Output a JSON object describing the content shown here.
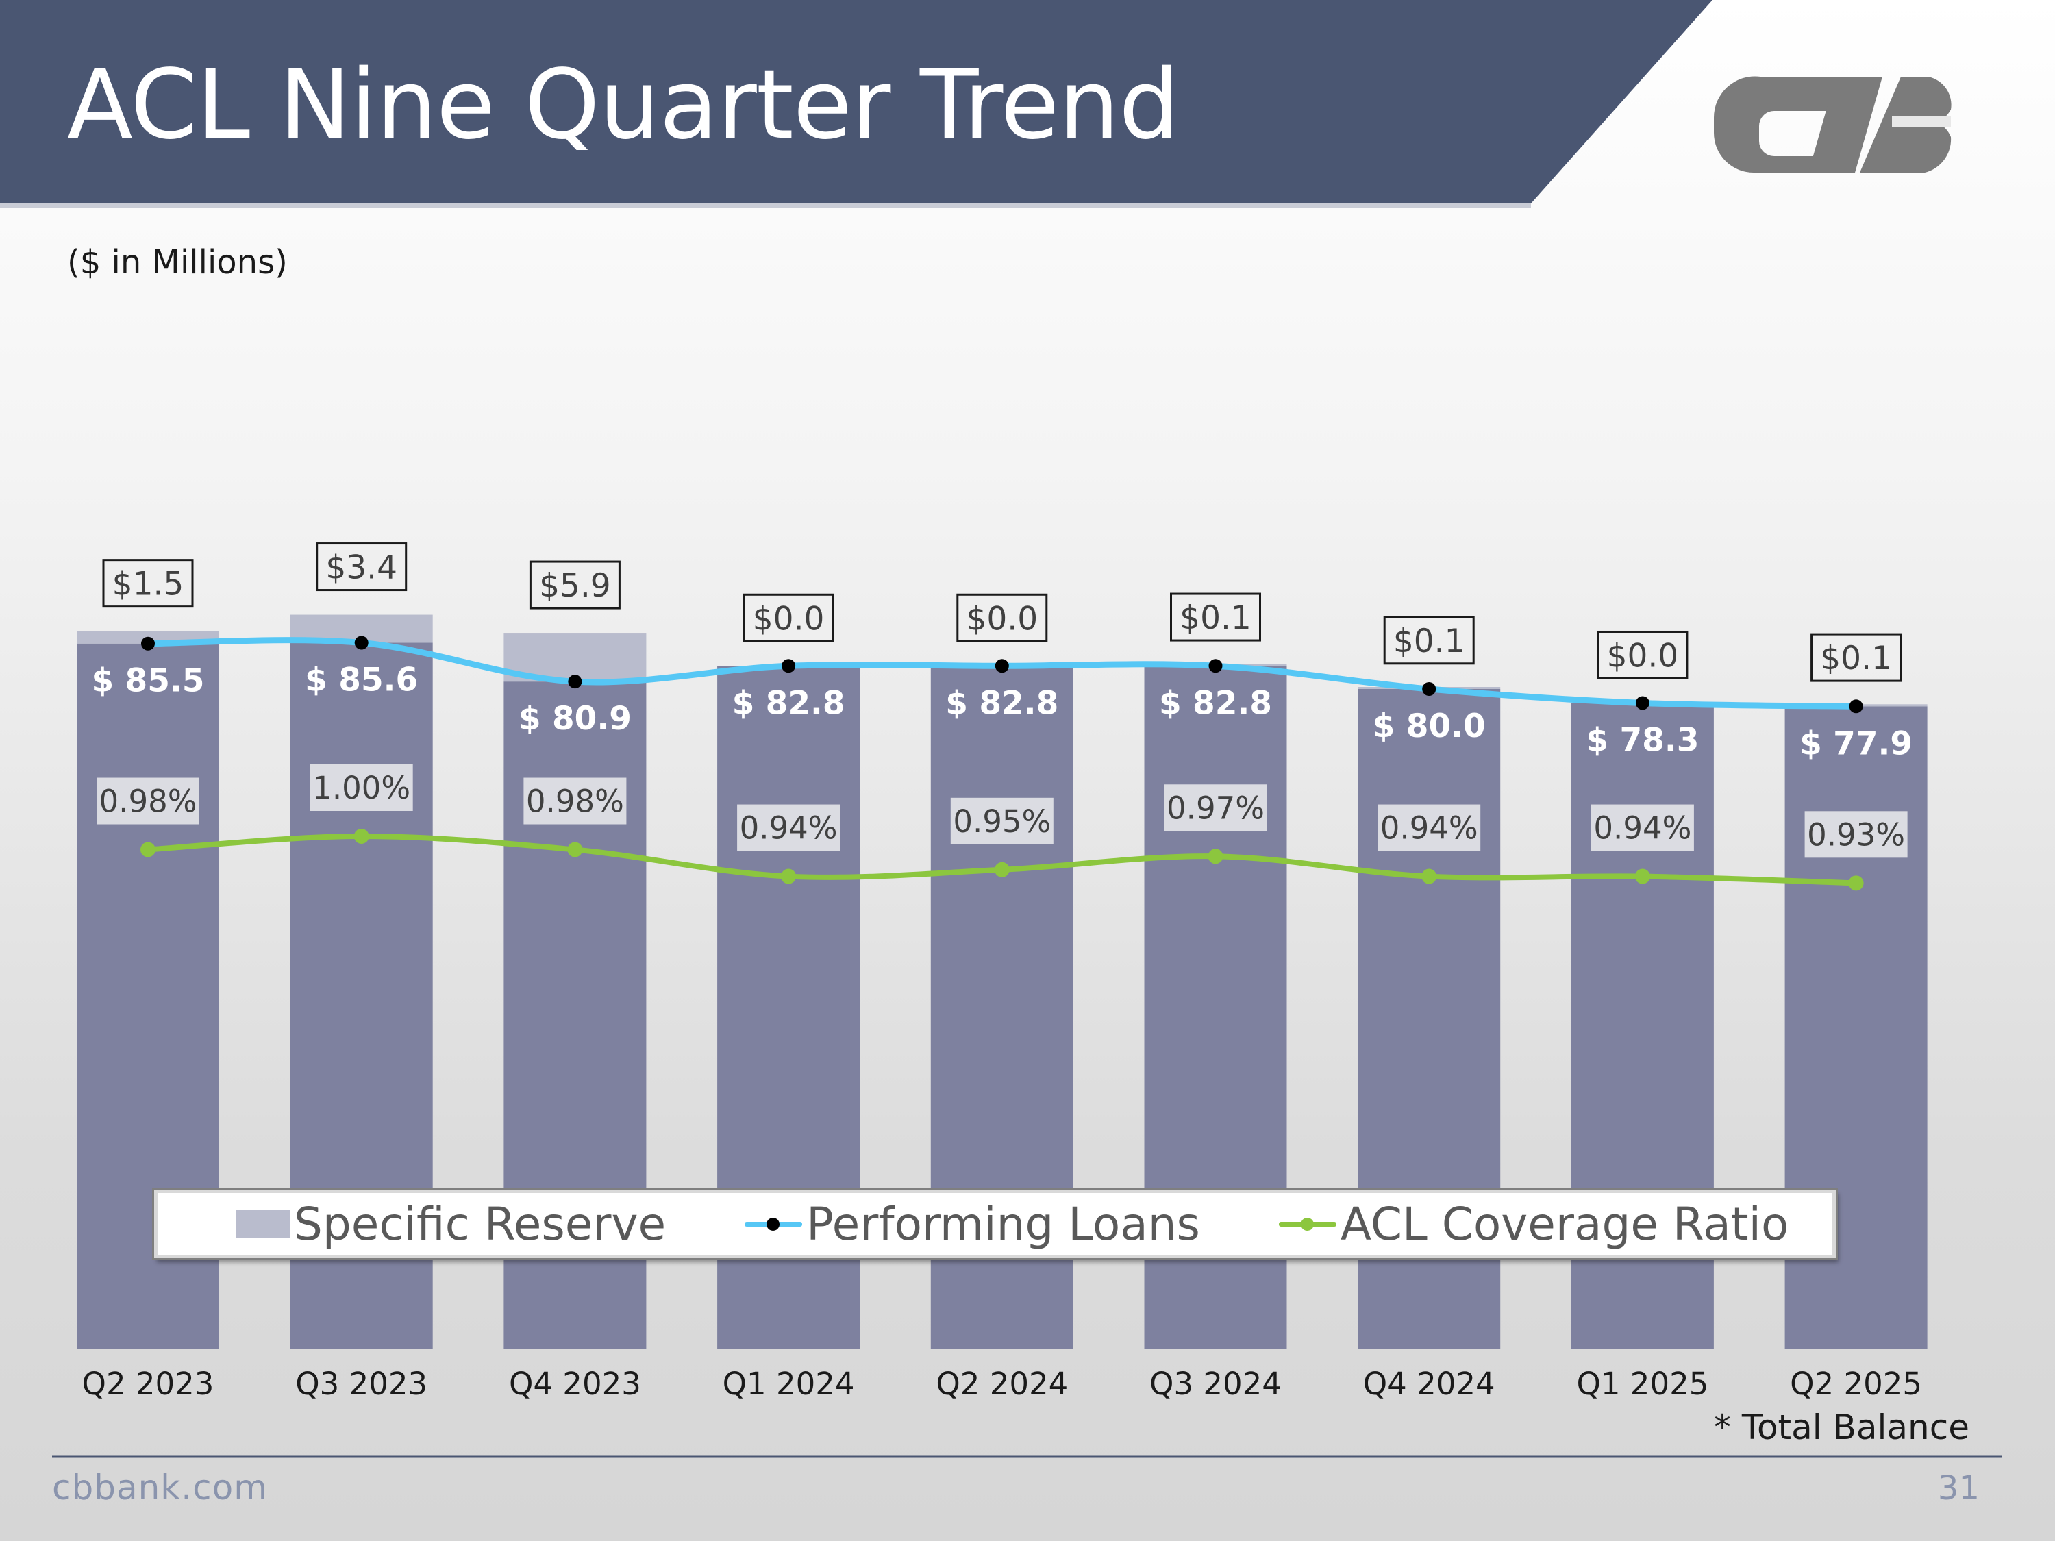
{
  "header": {
    "title": "ACL Nine Quarter Trend"
  },
  "units_note": "($ in Millions)",
  "footnote": "* Total Balance",
  "footer": {
    "url": "cbbank.com",
    "page_number": "31"
  },
  "logo": {
    "name": "CVB logo",
    "color": "#7b7b7b"
  },
  "colors": {
    "header_band": "#4a5672",
    "bar": "#7e819f",
    "specific_reserve": "#b9bccd",
    "performing_loans_line": "#56c7f5",
    "acl_ratio_line": "#8cc63e",
    "marker": "#000000"
  },
  "chart_data": {
    "type": "bar",
    "categories": [
      "Q2 2023",
      "Q3 2023",
      "Q4 2023",
      "Q1 2024",
      "Q2 2024",
      "Q3 2024",
      "Q4 2024",
      "Q1 2025",
      "Q2 2025"
    ],
    "series": [
      {
        "name": "Performing Loans",
        "kind": "bar+line",
        "values": [
          85.5,
          85.6,
          80.9,
          82.8,
          82.8,
          82.8,
          80.0,
          78.3,
          77.9
        ],
        "labels": [
          "$ 85.5",
          "$ 85.6",
          "$ 80.9",
          "$ 82.8",
          "$ 82.8",
          "$ 82.8",
          "$ 80.0",
          "$ 78.3",
          "$ 77.9"
        ]
      },
      {
        "name": "Specific Reserve",
        "kind": "stacked-bar",
        "values": [
          1.5,
          3.4,
          5.9,
          0.0,
          0.0,
          0.1,
          0.1,
          0.0,
          0.1
        ],
        "labels": [
          "$1.5",
          "$3.4",
          "$5.9",
          "$0.0",
          "$0.0",
          "$0.1",
          "$0.1",
          "$0.0",
          "$0.1"
        ]
      },
      {
        "name": "ACL Coverage Ratio",
        "kind": "line",
        "unit": "%",
        "values": [
          0.98,
          1.0,
          0.98,
          0.94,
          0.95,
          0.97,
          0.94,
          0.94,
          0.93
        ],
        "labels": [
          "0.98%",
          "1.00%",
          "0.98%",
          "0.94%",
          "0.95%",
          "0.97%",
          "0.94%",
          "0.94%",
          "0.93%"
        ]
      }
    ],
    "legend": [
      "Specific Reserve",
      "Performing Loans",
      "ACL Coverage Ratio"
    ],
    "legend_position": "inside-bottom",
    "grid": false
  }
}
